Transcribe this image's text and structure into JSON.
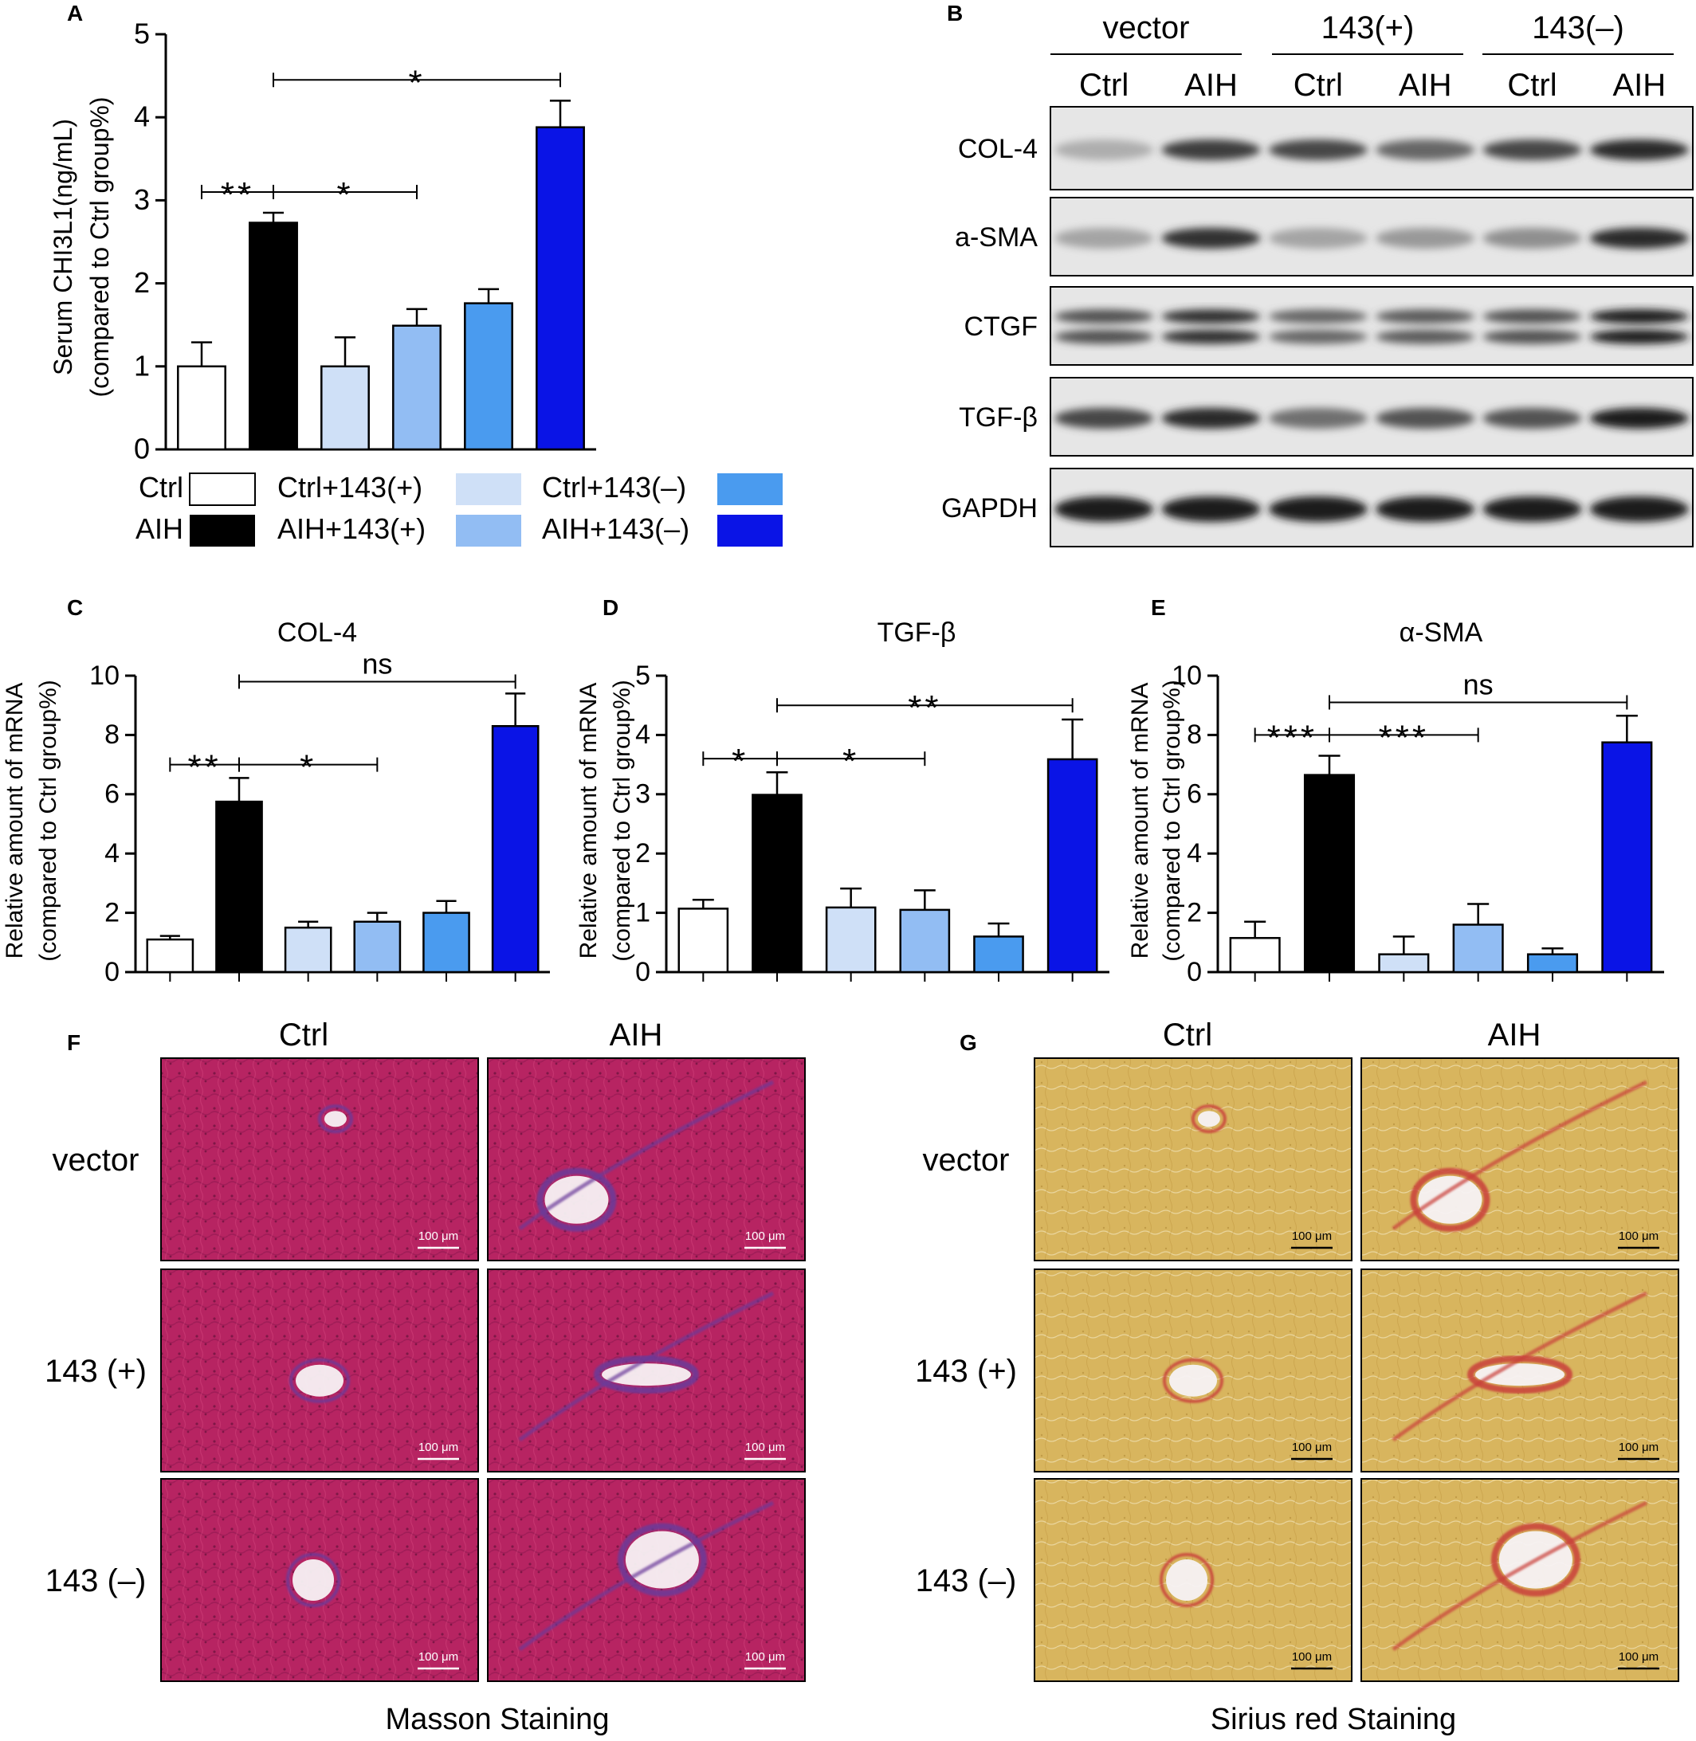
{
  "colors": {
    "ctrl": "#ffffff",
    "aih": "#000000",
    "ctrl_143_plus": "#cfe0f7",
    "aih_143_plus": "#92bdf3",
    "ctrl_143_minus": "#4a9bef",
    "aih_143_minus": "#0a14e6"
  },
  "panel_labels": {
    "a": "A",
    "b": "B",
    "c": "C",
    "d": "D",
    "e": "E",
    "f": "F",
    "g": "G"
  },
  "legend": [
    {
      "label": "Ctrl",
      "color": "#ffffff"
    },
    {
      "label": "AIH",
      "color": "#000000"
    },
    {
      "label": "Ctrl+143(+)",
      "color": "#cfe0f7"
    },
    {
      "label": "AIH+143(+)",
      "color": "#92bdf3"
    },
    {
      "label": "Ctrl+143(–)",
      "color": "#4a9bef"
    },
    {
      "label": "AIH+143(–)",
      "color": "#0a14e6"
    }
  ],
  "chart_data": [
    {
      "id": "A",
      "type": "bar",
      "title": "",
      "ylabel": "Serum CHI3L1(ng/mL)",
      "ylabel2": "(compared to Ctrl group%)",
      "ylim": [
        0,
        5
      ],
      "yticks": [
        "0",
        "1",
        "2",
        "3",
        "4",
        "5"
      ],
      "categories": [
        "Ctrl",
        "AIH",
        "Ctrl+143(+)",
        "AIH+143(+)",
        "Ctrl+143(–)",
        "AIH+143(–)"
      ],
      "values": [
        1.0,
        2.73,
        1.0,
        1.49,
        1.76,
        3.88
      ],
      "errors": [
        0.29,
        0.12,
        0.35,
        0.2,
        0.17,
        0.32
      ],
      "significance": [
        {
          "from": 0,
          "to": 1,
          "text": "**",
          "y": 3.1
        },
        {
          "from": 1,
          "to": 3,
          "text": "*",
          "y": 3.1
        },
        {
          "from": 1,
          "to": 5,
          "text": "*",
          "y": 4.45
        }
      ]
    },
    {
      "id": "C",
      "type": "bar",
      "title": "COL-4",
      "ylabel": "Relative amount of mRNA",
      "ylabel2": "(compared to Ctrl group%)",
      "ylim": [
        0,
        10
      ],
      "yticks": [
        "0",
        "2",
        "4",
        "6",
        "8",
        "10"
      ],
      "categories": [
        "Ctrl",
        "AIH",
        "Ctrl+143(+)",
        "AIH+143(+)",
        "Ctrl+143(–)",
        "AIH+143(–)"
      ],
      "values": [
        1.1,
        5.75,
        1.5,
        1.7,
        2.0,
        8.3
      ],
      "errors": [
        0.12,
        0.8,
        0.2,
        0.3,
        0.4,
        1.1
      ],
      "significance": [
        {
          "from": 0,
          "to": 1,
          "text": "**",
          "y": 7.0
        },
        {
          "from": 1,
          "to": 3,
          "text": "*",
          "y": 7.0
        },
        {
          "from": 1,
          "to": 5,
          "text": "ns",
          "y": 9.8
        }
      ]
    },
    {
      "id": "D",
      "type": "bar",
      "title": "TGF-β",
      "ylabel": "Relative amount of mRNA",
      "ylabel2": "(compared to Ctrl group%)",
      "ylim": [
        0,
        5
      ],
      "yticks": [
        "0",
        "1",
        "2",
        "3",
        "4",
        "5"
      ],
      "categories": [
        "Ctrl",
        "AIH",
        "Ctrl+143(+)",
        "AIH+143(+)",
        "Ctrl+143(–)",
        "AIH+143(–)"
      ],
      "values": [
        1.07,
        2.99,
        1.09,
        1.05,
        0.6,
        3.59
      ],
      "errors": [
        0.15,
        0.38,
        0.32,
        0.33,
        0.22,
        0.67
      ],
      "significance": [
        {
          "from": 0,
          "to": 1,
          "text": "*",
          "y": 3.6
        },
        {
          "from": 1,
          "to": 3,
          "text": "*",
          "y": 3.6
        },
        {
          "from": 1,
          "to": 5,
          "text": "**",
          "y": 4.5
        }
      ]
    },
    {
      "id": "E",
      "type": "bar",
      "title": "α-SMA",
      "ylabel": "Relative amount of mRNA",
      "ylabel2": "(compared to Ctrl group%)",
      "ylim": [
        0,
        10
      ],
      "yticks": [
        "0",
        "2",
        "4",
        "6",
        "8",
        "10"
      ],
      "categories": [
        "Ctrl",
        "AIH",
        "Ctrl+143(+)",
        "AIH+143(+)",
        "Ctrl+143(–)",
        "AIH+143(–)"
      ],
      "values": [
        1.15,
        6.65,
        0.6,
        1.6,
        0.6,
        7.75
      ],
      "errors": [
        0.55,
        0.65,
        0.6,
        0.7,
        0.2,
        0.9
      ],
      "significance": [
        {
          "from": 0,
          "to": 1,
          "text": "***",
          "y": 8.0
        },
        {
          "from": 1,
          "to": 3,
          "text": "***",
          "y": 8.0
        },
        {
          "from": 1,
          "to": 5,
          "text": "ns",
          "y": 9.1
        }
      ]
    }
  ],
  "western_blot": {
    "groups": [
      "vector",
      "143(+)",
      "143(–)"
    ],
    "lanes": [
      "Ctrl",
      "AIH",
      "Ctrl",
      "AIH",
      "Ctrl",
      "AIH"
    ],
    "rows": [
      {
        "name": "COL-4",
        "intensity": [
          0.25,
          0.8,
          0.75,
          0.6,
          0.75,
          0.9
        ],
        "double": false
      },
      {
        "name": "a-SMA",
        "intensity": [
          0.3,
          0.85,
          0.3,
          0.35,
          0.4,
          0.9
        ],
        "double": false
      },
      {
        "name": "CTGF",
        "intensity": [
          0.7,
          0.85,
          0.6,
          0.65,
          0.7,
          0.95
        ],
        "double": true
      },
      {
        "name": "TGF-β",
        "intensity": [
          0.75,
          0.9,
          0.55,
          0.7,
          0.7,
          0.95
        ],
        "double": false
      },
      {
        "name": "GAPDH",
        "intensity": [
          0.95,
          0.95,
          0.95,
          0.95,
          0.95,
          0.95
        ],
        "double": false
      }
    ]
  },
  "histology": {
    "masson": {
      "title": "Masson Staining",
      "columns": [
        "Ctrl",
        "AIH"
      ],
      "rows": [
        "vector",
        "143 (+)",
        "143 (–)"
      ],
      "tissue": "#b72462",
      "fiber": "#6a3a9a"
    },
    "sirius": {
      "title": "Sirius red Staining",
      "columns": [
        "Ctrl",
        "AIH"
      ],
      "rows": [
        "vector",
        "143 (+)",
        "143 (–)"
      ],
      "tissue": "#d8b55e",
      "fiber": "#c9403a"
    },
    "scale_bar": "100 μm"
  }
}
